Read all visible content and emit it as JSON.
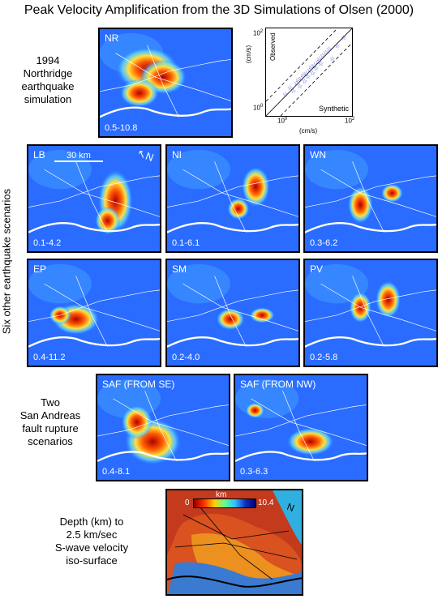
{
  "title": "Peak Velocity Amplification from the 3D Simulations of Olsen (2000)",
  "labels": {
    "northridge": [
      "1994",
      "Northridge",
      "earthquake",
      "simulation"
    ],
    "six": "Six other earthquake scenarios",
    "two": [
      "Two",
      "San Andreas",
      "fault rupture",
      "scenarios"
    ],
    "depth": [
      "Depth (km) to",
      "2.5 km/sec",
      "S-wave velocity",
      "iso-surface"
    ]
  },
  "panels": [
    {
      "code": "NR",
      "range": "0.5-10.8"
    },
    {
      "code": "LB",
      "range": "0.1-4.2"
    },
    {
      "code": "NI",
      "range": "0.1-6.1"
    },
    {
      "code": "WN",
      "range": "0.3-6.2"
    },
    {
      "code": "EP",
      "range": "0.4-11.2"
    },
    {
      "code": "SM",
      "range": "0.2-4.0"
    },
    {
      "code": "PV",
      "range": "0.2-5.8"
    },
    {
      "code": "SAF (FROM SE)",
      "range": "0.4-8.1"
    },
    {
      "code": "SAF (FROM NW)",
      "range": "0.3-6.3"
    }
  ],
  "scale_bar": "30 km",
  "north": "N",
  "scatter": {
    "ylabel": "Observed",
    "xlabel": "Synthetic",
    "units": "(cm/s)",
    "tick_low": "10",
    "tick_high": "10",
    "exp_low": "0",
    "exp_high": "2"
  },
  "depth_map": {
    "unit": "km",
    "min": "0",
    "max": "10.4",
    "north": "N"
  }
}
